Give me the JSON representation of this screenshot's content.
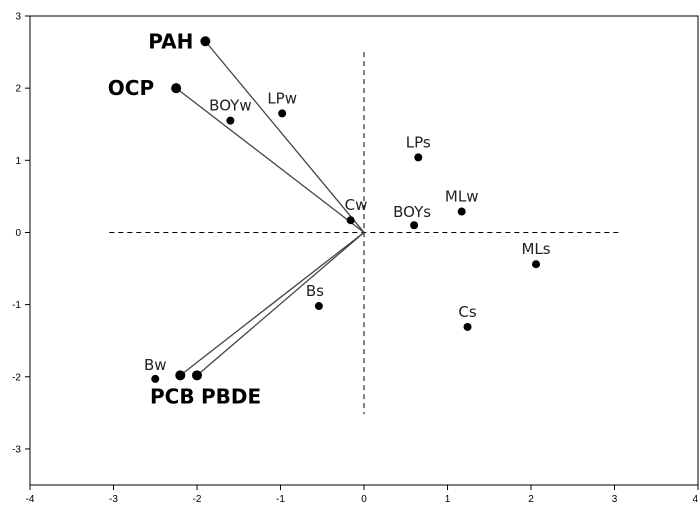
{
  "chart_data": {
    "type": "scatter",
    "title": "",
    "xlabel": "",
    "ylabel": "",
    "xlim": [
      -4,
      4
    ],
    "ylim": [
      -3.5,
      3
    ],
    "xticks": [
      -4,
      -3,
      -2,
      -1,
      0,
      1,
      2,
      3,
      4
    ],
    "yticks": [
      -3,
      -2,
      -1,
      0,
      1,
      2,
      3
    ],
    "grid": false,
    "reference_lines": {
      "x": 0,
      "y": 0,
      "style": "dashed"
    },
    "points": [
      {
        "label": "BOYw",
        "x": -1.6,
        "y": 1.55
      },
      {
        "label": "LPw",
        "x": -0.98,
        "y": 1.65
      },
      {
        "label": "Cw",
        "x": -0.16,
        "y": 0.17
      },
      {
        "label": "LPs",
        "x": 0.65,
        "y": 1.04
      },
      {
        "label": "MLw",
        "x": 1.17,
        "y": 0.29
      },
      {
        "label": "BOYs",
        "x": 0.6,
        "y": 0.1
      },
      {
        "label": "MLs",
        "x": 2.06,
        "y": -0.44
      },
      {
        "label": "Bs",
        "x": -0.54,
        "y": -1.02
      },
      {
        "label": "Cs",
        "x": 1.24,
        "y": -1.31
      },
      {
        "label": "Bw",
        "x": -2.5,
        "y": -2.03
      }
    ],
    "vectors": [
      {
        "label": "PAH",
        "x": -1.9,
        "y": 2.65
      },
      {
        "label": "OCP",
        "x": -2.25,
        "y": 2.0
      },
      {
        "label": "PCB",
        "x": -2.2,
        "y": -1.98
      },
      {
        "label": "PBDE",
        "x": -2.0,
        "y": -1.98
      }
    ]
  }
}
